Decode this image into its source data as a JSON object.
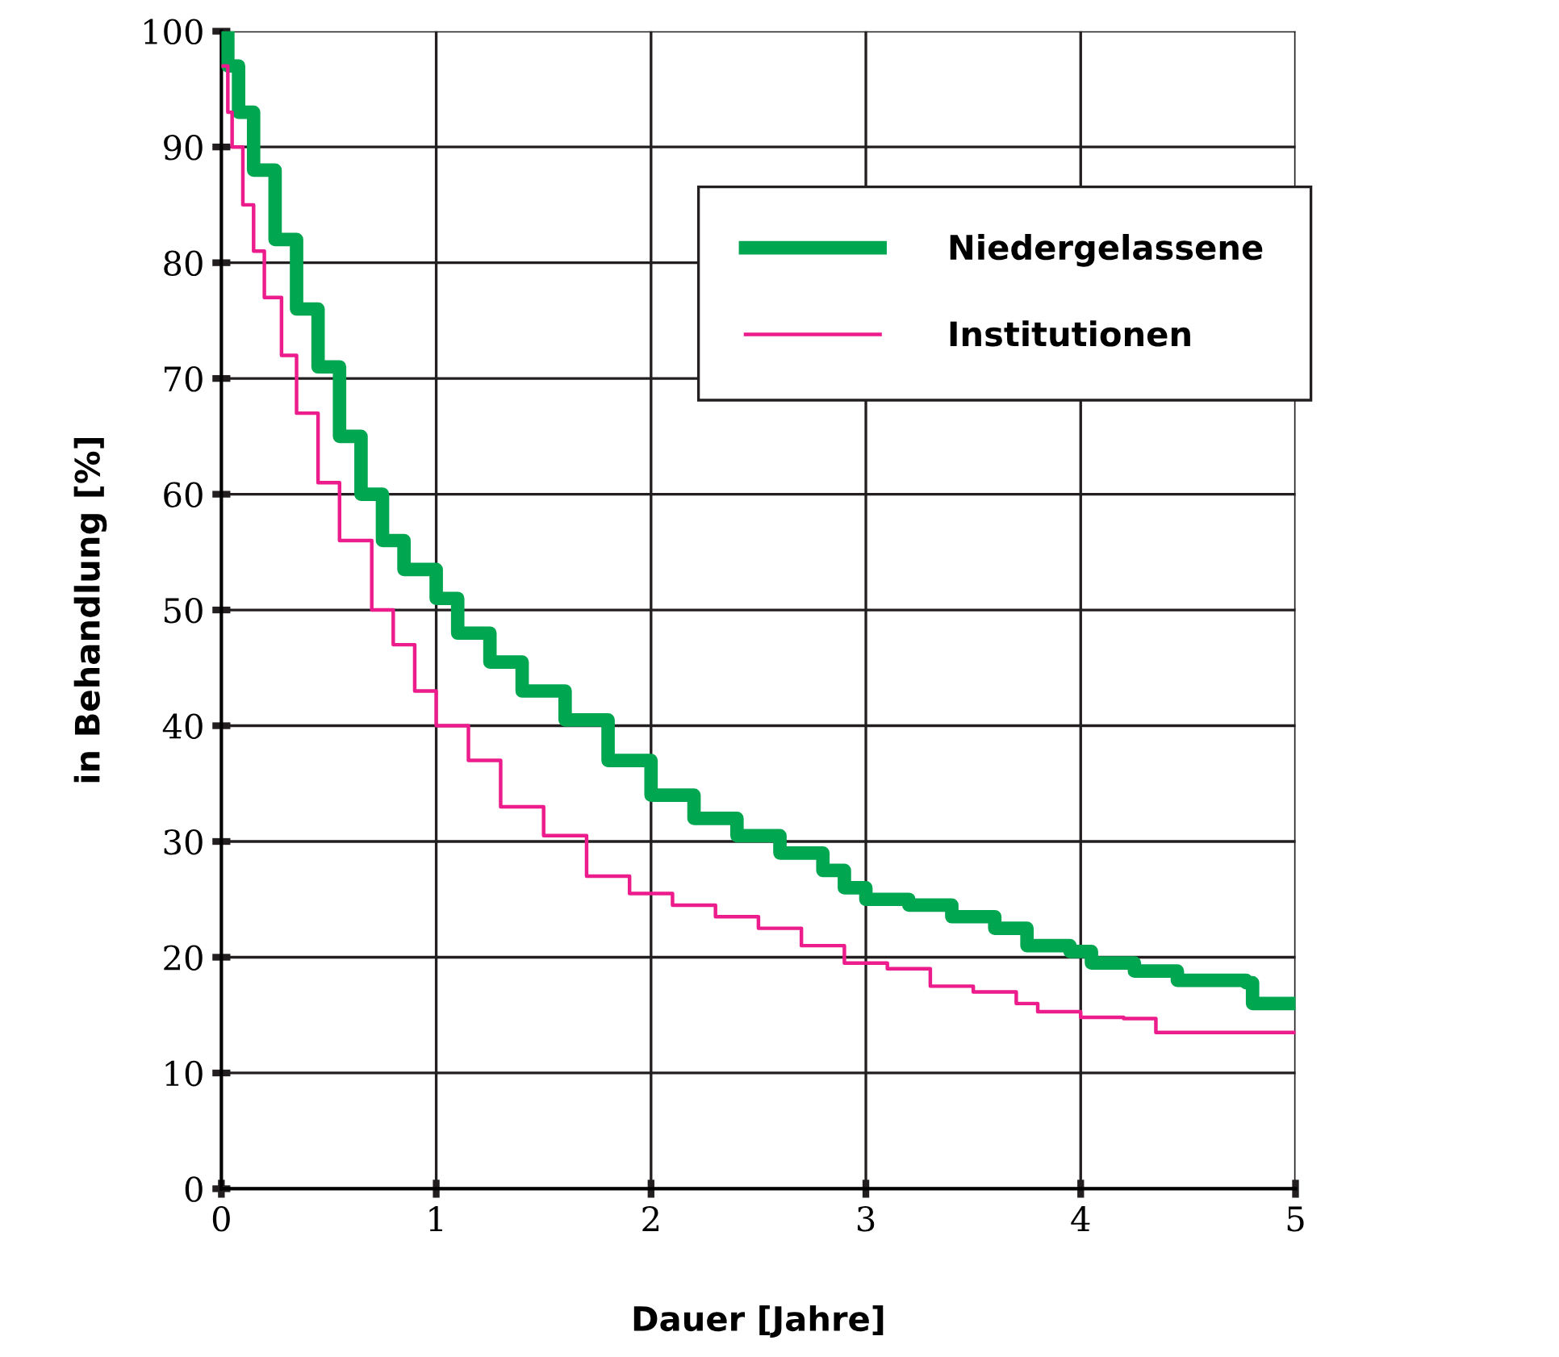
{
  "chart_data": {
    "type": "step",
    "xlabel": "Dauer [Jahre]",
    "ylabel": "in Behandlung [%]",
    "xlim": [
      0,
      5
    ],
    "xticks": [
      0,
      1,
      2,
      3,
      4,
      5
    ],
    "ylim": [
      0,
      100
    ],
    "yticks": [
      0,
      10,
      20,
      30,
      40,
      50,
      60,
      70,
      80,
      90,
      100
    ],
    "grid": true,
    "legend": "top right",
    "marker": "none",
    "line_style": "solid",
    "series": [
      {
        "name": "Niedergelassene",
        "color": "#00a650",
        "x": [
          0,
          0.03,
          0.08,
          0.15,
          0.25,
          0.35,
          0.45,
          0.55,
          0.65,
          0.75,
          0.85,
          1.0,
          1.1,
          1.25,
          1.4,
          1.6,
          1.8,
          2.0,
          2.2,
          2.4,
          2.6,
          2.8,
          2.9,
          3.0,
          3.2,
          3.4,
          3.6,
          3.75,
          3.95,
          4.05,
          4.25,
          4.45,
          4.77,
          4.8,
          5.0
        ],
        "values": [
          100,
          97,
          93,
          88,
          82,
          76,
          71,
          65,
          60,
          56,
          53.5,
          51,
          48,
          45.5,
          43,
          40.5,
          37,
          34,
          32,
          30.5,
          29,
          27.5,
          26,
          25,
          24.5,
          23.5,
          22.5,
          21,
          20.5,
          19.5,
          18.8,
          18,
          17.8,
          16,
          16
        ]
      },
      {
        "name": "Institutionen",
        "color": "#ec1c8c",
        "x": [
          0,
          0.03,
          0.05,
          0.1,
          0.15,
          0.2,
          0.28,
          0.35,
          0.45,
          0.55,
          0.7,
          0.8,
          0.9,
          1.0,
          1.15,
          1.3,
          1.5,
          1.7,
          1.9,
          2.1,
          2.3,
          2.5,
          2.7,
          2.9,
          3.1,
          3.3,
          3.5,
          3.7,
          3.8,
          4.0,
          4.2,
          4.35,
          5.0
        ],
        "values": [
          97,
          93,
          90,
          85,
          81,
          77,
          72,
          67,
          61,
          56,
          50,
          47,
          43,
          40,
          37,
          33,
          30.5,
          27,
          25.5,
          24.5,
          23.5,
          22.5,
          21,
          19.5,
          19,
          17.5,
          17,
          16,
          15.3,
          14.8,
          14.7,
          13.5,
          13.5
        ]
      }
    ]
  }
}
